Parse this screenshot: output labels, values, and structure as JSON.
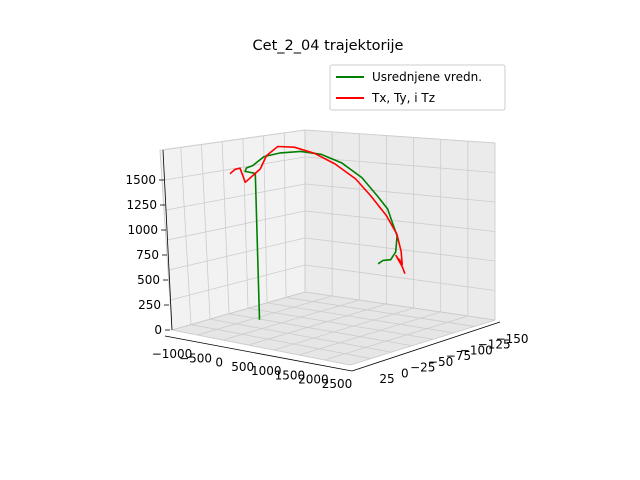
{
  "chart_data": {
    "type": "line3d",
    "title": "Cet_2_04 trajektorije",
    "xlabel": "",
    "ylabel": "",
    "zlabel": "",
    "grid": true,
    "legend_position": "top-right",
    "x_ticks": [
      "−1000",
      "−500",
      "0",
      "500",
      "1000",
      "1500",
      "2000",
      "2500"
    ],
    "y_ticks": [
      "25",
      "0",
      "−25",
      "−50",
      "−75",
      "−100",
      "−125",
      "−150"
    ],
    "z_ticks": [
      "0",
      "250",
      "500",
      "750",
      "1000",
      "1250",
      "1500"
    ],
    "xlim": [
      -1000,
      2500
    ],
    "ylim": [
      25,
      -150
    ],
    "zlim": [
      0,
      1600
    ],
    "series": [
      {
        "name": "Usrednjene vredn.",
        "color": "#008000",
        "points": [
          [
            -400,
            -50,
            0
          ],
          [
            -600,
            -60,
            1300
          ],
          [
            -800,
            -60,
            1300
          ],
          [
            -700,
            -55,
            1350
          ],
          [
            -500,
            -50,
            1400
          ],
          [
            -200,
            -45,
            1520
          ],
          [
            200,
            -40,
            1600
          ],
          [
            600,
            -40,
            1650
          ],
          [
            1000,
            -40,
            1660
          ],
          [
            1400,
            -40,
            1620
          ],
          [
            1800,
            -40,
            1520
          ],
          [
            2100,
            -40,
            1380
          ],
          [
            2300,
            -40,
            1280
          ],
          [
            2400,
            -40,
            1150
          ],
          [
            2480,
            -40,
            1050
          ],
          [
            2450,
            -40,
            900
          ],
          [
            2350,
            -40,
            820
          ],
          [
            2200,
            -40,
            800
          ],
          [
            2100,
            -40,
            760
          ]
        ]
      },
      {
        "name": "Tx, Ty, i Tz",
        "color": "#ff0000",
        "points": [
          [
            -1100,
            -60,
            1250
          ],
          [
            -1000,
            -60,
            1300
          ],
          [
            -900,
            -60,
            1320
          ],
          [
            -800,
            -60,
            1200
          ],
          [
            -700,
            -60,
            1250
          ],
          [
            -500,
            -60,
            1350
          ],
          [
            -300,
            -55,
            1500
          ],
          [
            0,
            -50,
            1620
          ],
          [
            400,
            -45,
            1660
          ],
          [
            800,
            -45,
            1640
          ],
          [
            1200,
            -45,
            1580
          ],
          [
            1600,
            -45,
            1480
          ],
          [
            1900,
            -45,
            1350
          ],
          [
            2200,
            -45,
            1200
          ],
          [
            2400,
            -45,
            1050
          ],
          [
            2480,
            -45,
            900
          ],
          [
            2500,
            -45,
            780
          ],
          [
            2380,
            -45,
            850
          ],
          [
            2500,
            -45,
            760
          ],
          [
            2450,
            -45,
            820
          ],
          [
            2550,
            -45,
            700
          ]
        ]
      }
    ]
  }
}
